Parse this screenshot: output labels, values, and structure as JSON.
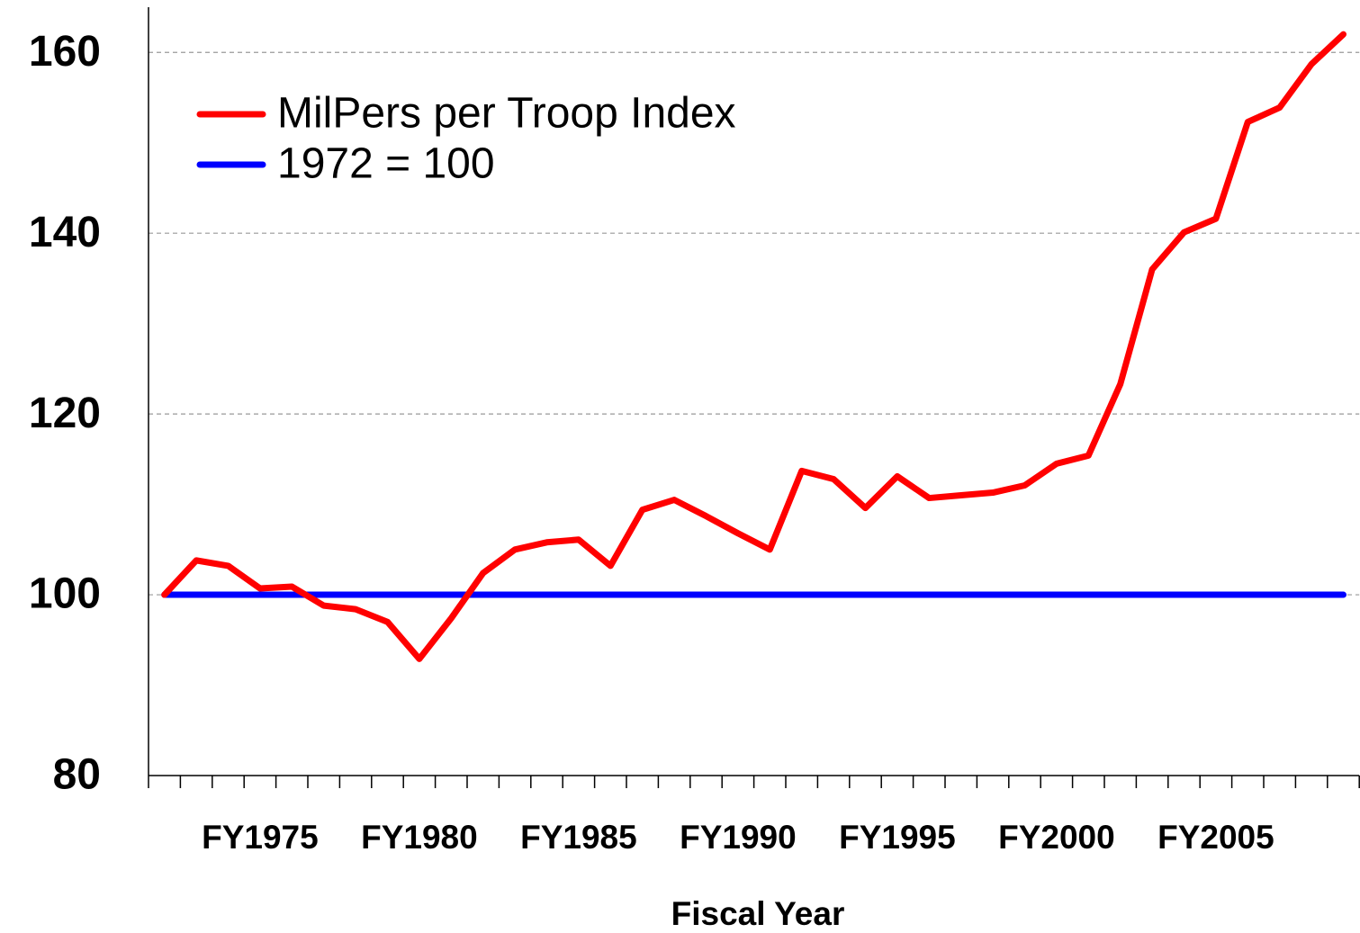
{
  "chart_data": {
    "type": "line",
    "x_label": "Fiscal Year",
    "categories": [
      null,
      null,
      null,
      "FY1975",
      null,
      null,
      null,
      null,
      "FY1980",
      null,
      null,
      null,
      null,
      "FY1985",
      null,
      null,
      null,
      null,
      "FY1990",
      null,
      null,
      null,
      null,
      "FY1995",
      null,
      null,
      null,
      null,
      "FY2000",
      null,
      null,
      null,
      null,
      "FY2005",
      null,
      null,
      null,
      null
    ],
    "series": [
      {
        "name": "MilPers per Troop Index",
        "color": "#ff0000",
        "values": [
          100,
          103.8,
          103.2,
          100.7,
          100.9,
          98.8,
          98.4,
          97.0,
          92.9,
          97.4,
          102.4,
          105.0,
          105.8,
          106.1,
          103.2,
          109.4,
          110.5,
          108.7,
          106.8,
          105.0,
          113.7,
          112.8,
          109.6,
          113.1,
          110.7,
          111.0,
          111.3,
          112.1,
          114.5,
          115.4,
          123.3,
          136.0,
          140.1,
          141.6,
          152.3,
          153.9,
          158.7,
          162.0
        ]
      },
      {
        "name": "1972 = 100",
        "color": "#0000ff",
        "values": [
          100,
          100,
          100,
          100,
          100,
          100,
          100,
          100,
          100,
          100,
          100,
          100,
          100,
          100,
          100,
          100,
          100,
          100,
          100,
          100,
          100,
          100,
          100,
          100,
          100,
          100,
          100,
          100,
          100,
          100,
          100,
          100,
          100,
          100,
          100,
          100,
          100,
          100
        ]
      }
    ],
    "ylim": [
      80,
      165
    ],
    "yticks": [
      80,
      100,
      120,
      140,
      160
    ],
    "grid": true,
    "legend": "upper left"
  }
}
